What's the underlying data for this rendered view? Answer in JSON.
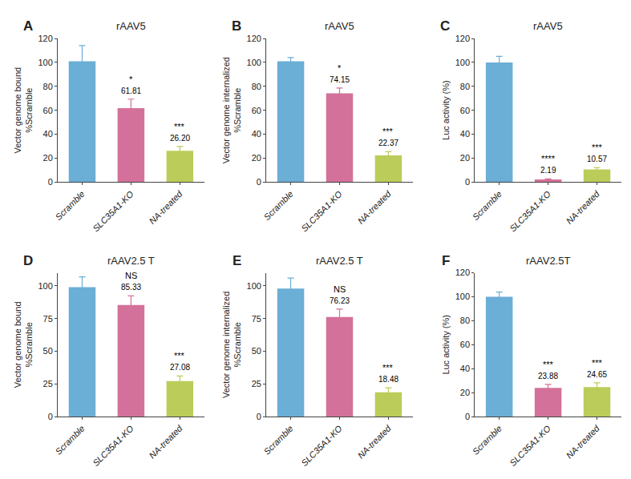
{
  "chart_data": [
    {
      "type": "bar",
      "label": "A",
      "title": "rAAV5",
      "ylabel": "Vector genome bound\n%Scramble",
      "ylim": [
        0,
        120
      ],
      "yticks": [
        0,
        20,
        40,
        60,
        80,
        100,
        120
      ],
      "categories": [
        "Scramble",
        "SLC35A1-KO",
        "NA-treated"
      ],
      "values": [
        101.0,
        61.81,
        26.2
      ],
      "errors": [
        13.0,
        7.5,
        3.5
      ],
      "colors": [
        "#6BAED6",
        "#D4719A",
        "#BCCC5A"
      ],
      "sig_labels": [
        null,
        "*",
        "***"
      ],
      "value_labels": [
        null,
        "61.81",
        "26.20"
      ],
      "grid": false
    },
    {
      "type": "bar",
      "label": "B",
      "title": "rAAV5",
      "ylabel": "Vector genome internalized\n%Scramble",
      "ylim": [
        0,
        120
      ],
      "yticks": [
        0,
        20,
        40,
        60,
        80,
        100,
        120
      ],
      "categories": [
        "Scramble",
        "SLC35A1-KO",
        "NA-treated"
      ],
      "values": [
        101.0,
        74.15,
        22.37
      ],
      "errors": [
        3.0,
        4.5,
        3.0
      ],
      "colors": [
        "#6BAED6",
        "#D4719A",
        "#BCCC5A"
      ],
      "sig_labels": [
        null,
        "*",
        "***"
      ],
      "value_labels": [
        null,
        "74.15",
        "22.37"
      ],
      "grid": false
    },
    {
      "type": "bar",
      "label": "C",
      "title": "rAAV5",
      "ylabel": "Luc activity (%)",
      "ylim": [
        0,
        120
      ],
      "yticks": [
        0,
        20,
        40,
        60,
        80,
        100,
        120
      ],
      "categories": [
        "Scramble",
        "SLC35A1-KO",
        "NA-treated"
      ],
      "values": [
        100.0,
        2.19,
        10.57
      ],
      "errors": [
        5.0,
        0.5,
        1.5
      ],
      "colors": [
        "#6BAED6",
        "#D4719A",
        "#BCCC5A"
      ],
      "sig_labels": [
        null,
        "****",
        "***"
      ],
      "value_labels": [
        null,
        "2.19",
        "10.57"
      ],
      "grid": false
    },
    {
      "type": "bar",
      "label": "D",
      "title": "rAAV2.5 T",
      "ylabel": "Vector genome bound\n%Scramble",
      "ylim": [
        0,
        110
      ],
      "yticks": [
        0,
        25,
        50,
        75,
        100
      ],
      "categories": [
        "Scramble",
        "SLC35A1-KO",
        "NA-treated"
      ],
      "values": [
        99.0,
        85.33,
        27.08
      ],
      "errors": [
        8.0,
        7.0,
        4.0
      ],
      "colors": [
        "#6BAED6",
        "#D4719A",
        "#BCCC5A"
      ],
      "sig_labels": [
        null,
        "NS",
        "***"
      ],
      "value_labels": [
        null,
        "85.33",
        "27.08"
      ],
      "grid": false
    },
    {
      "type": "bar",
      "label": "E",
      "title": "rAAV2.5 T",
      "ylabel": "Vector genome internalized\n%Scramble",
      "ylim": [
        0,
        110
      ],
      "yticks": [
        0,
        25,
        50,
        75,
        100
      ],
      "categories": [
        "Scramble",
        "SLC35A1-KO",
        "NA-treated"
      ],
      "values": [
        98.0,
        76.23,
        18.48
      ],
      "errors": [
        8.0,
        6.0,
        3.5
      ],
      "colors": [
        "#6BAED6",
        "#D4719A",
        "#BCCC5A"
      ],
      "sig_labels": [
        null,
        "NS",
        "***"
      ],
      "value_labels": [
        null,
        "76.23",
        "18.48"
      ],
      "grid": false
    },
    {
      "type": "bar",
      "label": "F",
      "title": "rAAV2.5T",
      "ylabel": "Luc activity (%)",
      "ylim": [
        0,
        120
      ],
      "yticks": [
        0,
        20,
        40,
        60,
        80,
        100,
        120
      ],
      "categories": [
        "Scramble",
        "SLC35A1-KO",
        "NA-treated"
      ],
      "values": [
        100.0,
        23.88,
        24.65
      ],
      "errors": [
        4.0,
        3.0,
        3.5
      ],
      "colors": [
        "#6BAED6",
        "#D4719A",
        "#BCCC5A"
      ],
      "sig_labels": [
        null,
        "***",
        "***"
      ],
      "value_labels": [
        null,
        "23.88",
        "24.65"
      ],
      "grid": false
    }
  ]
}
